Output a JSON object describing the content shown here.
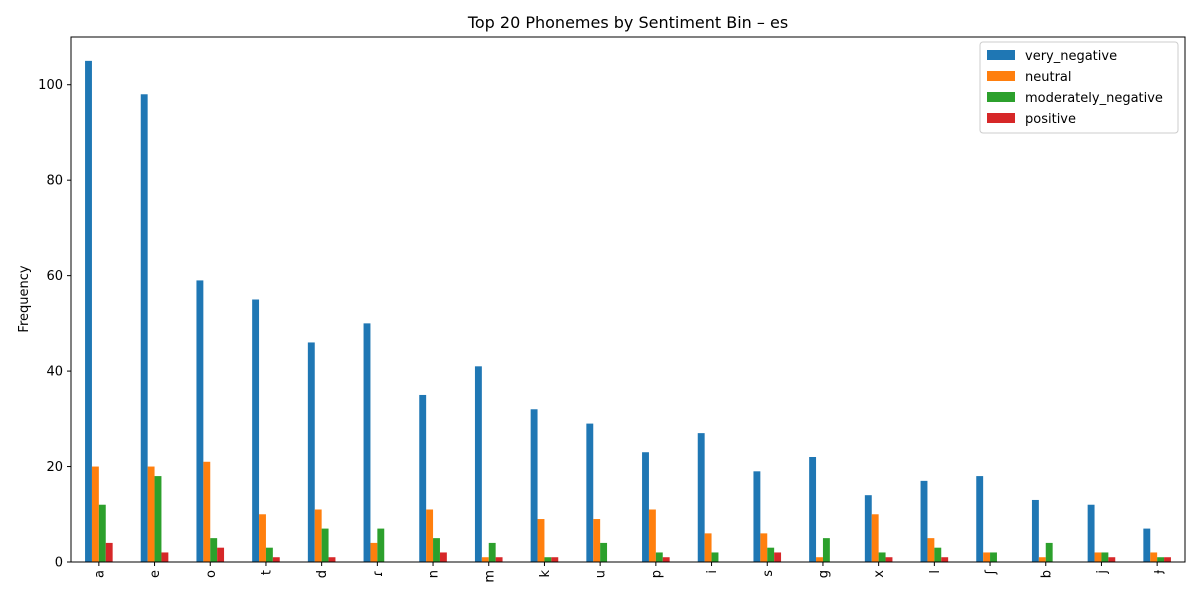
{
  "chart_data": {
    "type": "bar",
    "title": "Top 20 Phonemes by Sentiment Bin – es",
    "xlabel": "",
    "ylabel": "Frequency",
    "ylim": [
      0,
      110
    ],
    "yticks": [
      0,
      20,
      40,
      60,
      80,
      100
    ],
    "grid": false,
    "legend_position": "top-right",
    "categories": [
      "a",
      "e",
      "o",
      "t",
      "d",
      "ɾ",
      "n",
      "m",
      "k",
      "u",
      "p",
      "i",
      "s",
      "g",
      "x",
      "l",
      "ʃ",
      "b",
      "j",
      "ɟ"
    ],
    "series": [
      {
        "name": "very_negative",
        "color": "#1f77b4",
        "values": [
          105,
          98,
          59,
          55,
          46,
          50,
          35,
          41,
          32,
          29,
          23,
          27,
          19,
          22,
          14,
          17,
          18,
          13,
          12,
          7
        ]
      },
      {
        "name": "neutral",
        "color": "#ff7f0e",
        "values": [
          20,
          20,
          21,
          10,
          11,
          4,
          11,
          1,
          9,
          9,
          11,
          6,
          6,
          1,
          10,
          5,
          2,
          1,
          2,
          2
        ]
      },
      {
        "name": "moderately_negative",
        "color": "#2ca02c",
        "values": [
          12,
          18,
          5,
          3,
          7,
          7,
          5,
          4,
          1,
          4,
          2,
          2,
          3,
          5,
          2,
          3,
          2,
          4,
          2,
          1
        ]
      },
      {
        "name": "positive",
        "color": "#d62728",
        "values": [
          4,
          2,
          3,
          1,
          1,
          0,
          2,
          1,
          1,
          0,
          1,
          0,
          2,
          0,
          1,
          1,
          0,
          0,
          1,
          1
        ]
      }
    ]
  }
}
